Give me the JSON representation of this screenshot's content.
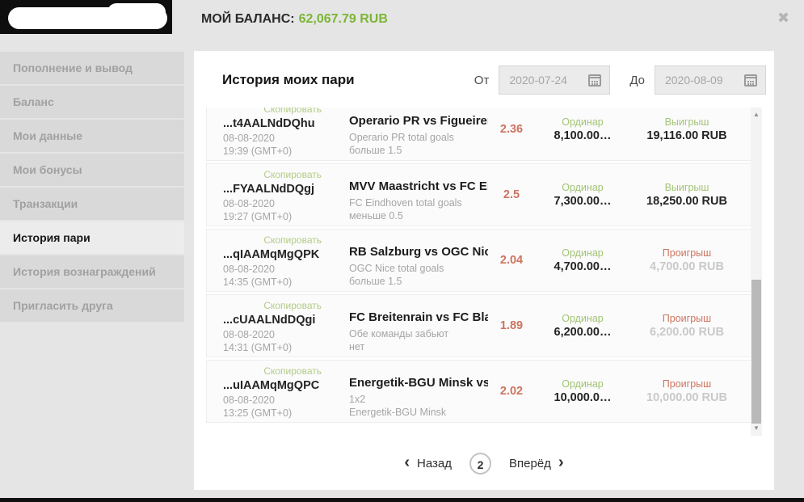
{
  "header": {
    "balance_label": "МОЙ БАЛАНС:",
    "balance_value": "62,067.79 RUB"
  },
  "icons": {
    "close": "✖",
    "scroll_up": "▲",
    "scroll_down": "▼",
    "prev": "‹",
    "next": "›"
  },
  "sidebar": {
    "items": [
      {
        "label": "Пополнение и вывод"
      },
      {
        "label": "Баланс"
      },
      {
        "label": "Мои данные"
      },
      {
        "label": "Мои бонусы"
      },
      {
        "label": "Транзакции"
      },
      {
        "label": "История пари",
        "active": true
      },
      {
        "label": "История вознаграждений"
      },
      {
        "label": "Пригласить друга"
      }
    ]
  },
  "main": {
    "title": "История моих пари",
    "filters": {
      "from_label": "От",
      "from_value": "2020-07-24",
      "to_label": "До",
      "to_value": "2020-08-09"
    },
    "copy_label": "Скопировать",
    "rows": [
      {
        "id": "...t4AALNdDQhu",
        "date": "08-08-2020",
        "time": "19:39 (GMT+0)",
        "match": "Operario PR vs Figueirens…",
        "market": "Operario PR total goals",
        "selection": "больше 1.5",
        "odds": "2.36",
        "type": "Ординар",
        "stake": "8,100.00…",
        "result_label": "Выигрыш",
        "result_value": "19,116.00 RUB",
        "outcome": "win"
      },
      {
        "id": "...FYAALNdDQgj",
        "date": "08-08-2020",
        "time": "19:27 (GMT+0)",
        "match": "MVV Maastricht vs FC Eind…",
        "market": "FC Eindhoven total goals",
        "selection": "меньше 0.5",
        "odds": "2.5",
        "type": "Ординар",
        "stake": "7,300.00…",
        "result_label": "Выигрыш",
        "result_value": "18,250.00 RUB",
        "outcome": "win"
      },
      {
        "id": "...qIAAMqMgQPK",
        "date": "08-08-2020",
        "time": "14:35 (GMT+0)",
        "match": "RB Salzburg vs OGC Nice",
        "market": "OGC Nice total goals",
        "selection": "больше 1.5",
        "odds": "2.04",
        "type": "Ординар",
        "stake": "4,700.00…",
        "result_label": "Проигрыш",
        "result_value": "4,700.00 RUB",
        "outcome": "loss"
      },
      {
        "id": "...cUAALNdDQgi",
        "date": "08-08-2020",
        "time": "14:31 (GMT+0)",
        "match": "FC Breitenrain vs FC Black…",
        "market": "Обе команды забьют",
        "selection": "нет",
        "odds": "1.89",
        "type": "Ординар",
        "stake": "6,200.00…",
        "result_label": "Проигрыш",
        "result_value": "6,200.00 RUB",
        "outcome": "loss"
      },
      {
        "id": "...uIAAMqMgQPC",
        "date": "08-08-2020",
        "time": "13:25 (GMT+0)",
        "match": "Energetik-BGU Minsk vs FC…",
        "market": "1x2",
        "selection": "Energetik-BGU Minsk",
        "odds": "2.02",
        "type": "Ординар",
        "stake": "10,000.0…",
        "result_label": "Проигрыш",
        "result_value": "10,000.00 RUB",
        "outcome": "loss"
      }
    ],
    "pagination": {
      "back_label": "Назад",
      "current_page": "2",
      "forward_label": "Вперёд"
    }
  },
  "colors": {
    "accent_green": "#7cb536",
    "label_green": "#a2c474",
    "copy_green": "#b2cc87",
    "salmon": "#cd7460",
    "loss_gray": "#c9c9c9"
  }
}
